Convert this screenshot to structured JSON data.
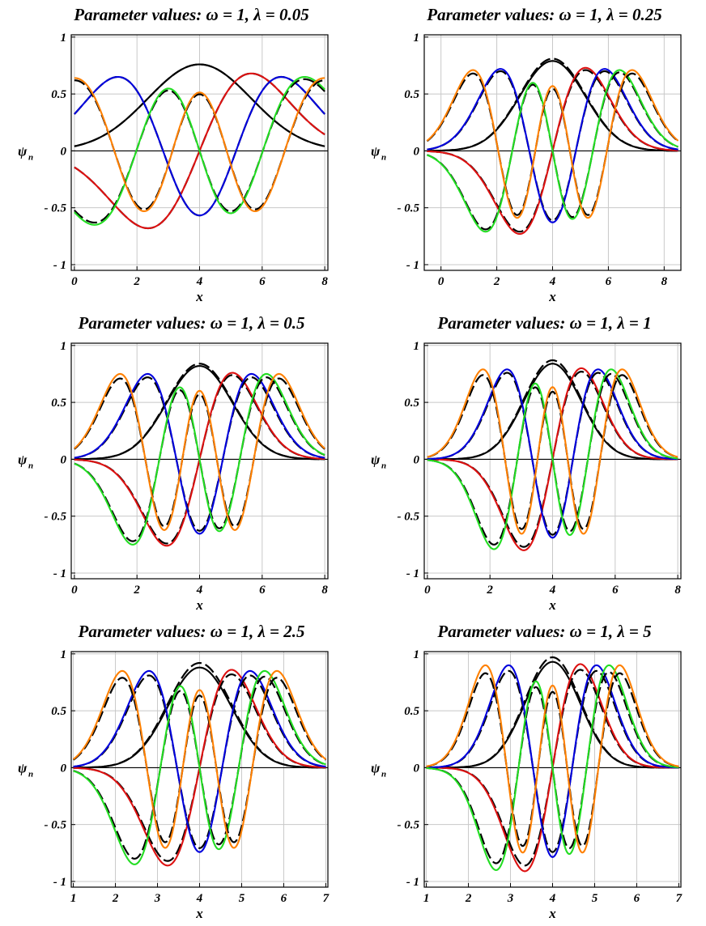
{
  "chart_data": [
    {
      "type": "line",
      "title": "Parameter values:   ω = 1,  λ = 0.05",
      "xlabel": "x",
      "ylabel": "ψ",
      "ylabel_sub": "n",
      "xlim": [
        -0.1,
        8.1
      ],
      "ylim": [
        -1.05,
        1.02
      ],
      "xticks": [
        0,
        2,
        4,
        6,
        8
      ],
      "xtick_labels": [
        "0",
        "2",
        "4",
        "6",
        "8"
      ],
      "yticks": [
        1,
        0.5,
        0,
        -0.5,
        -1
      ],
      "ytick_labels": [
        "1",
        "0.5",
        "0",
        "- 0.5",
        "- 1"
      ],
      "grid": true,
      "center": 4.0,
      "width": 1.65,
      "support": [
        0,
        8
      ],
      "dashed_overlay": true,
      "series": [
        {
          "color": "#000000",
          "order": 0,
          "amplitude": 0.76,
          "dashed_amplitude": 0.76
        },
        {
          "color": "#dd1111",
          "order": 1,
          "amplitude": 0.68,
          "dashed_amplitude": 0.68
        },
        {
          "color": "#0000dd",
          "order": 2,
          "amplitude": 0.65,
          "dashed_amplitude": 0.65
        },
        {
          "color": "#22dd22",
          "order": 3,
          "amplitude": 0.65,
          "dashed_amplitude": 0.63
        },
        {
          "color": "#ff8000",
          "order": 4,
          "amplitude": 0.64,
          "dashed_amplitude": 0.62
        }
      ]
    },
    {
      "type": "line",
      "title": "Parameter values:   ω = 1,  λ = 0.25",
      "xlabel": "x",
      "ylabel": "ψ",
      "ylabel_sub": "n",
      "xlim": [
        -0.6,
        8.6
      ],
      "ylim": [
        -1.05,
        1.02
      ],
      "xticks": [
        0,
        2,
        4,
        6,
        8
      ],
      "xtick_labels": [
        "0",
        "2",
        "4",
        "6",
        "8"
      ],
      "yticks": [
        1,
        0.5,
        0,
        -0.5,
        -1
      ],
      "ytick_labels": [
        "1",
        "0.5",
        "0",
        "- 0.5",
        "- 1"
      ],
      "grid": true,
      "center": 4.0,
      "width": 1.18,
      "support": [
        -0.5,
        8.5
      ],
      "dashed_overlay": true,
      "series": [
        {
          "color": "#000000",
          "order": 0,
          "amplitude": 0.79,
          "dashed_amplitude": 0.81
        },
        {
          "color": "#dd1111",
          "order": 1,
          "amplitude": 0.73,
          "dashed_amplitude": 0.71
        },
        {
          "color": "#0000dd",
          "order": 2,
          "amplitude": 0.72,
          "dashed_amplitude": 0.7
        },
        {
          "color": "#22dd22",
          "order": 3,
          "amplitude": 0.71,
          "dashed_amplitude": 0.69
        },
        {
          "color": "#ff8000",
          "order": 4,
          "amplitude": 0.71,
          "dashed_amplitude": 0.68
        }
      ]
    },
    {
      "type": "line",
      "title": "Parameter values:   ω = 1,  λ = 0.5",
      "xlabel": "x",
      "ylabel": "ψ",
      "ylabel_sub": "n",
      "xlim": [
        -0.1,
        8.1
      ],
      "ylim": [
        -1.05,
        1.02
      ],
      "xticks": [
        0,
        2,
        4,
        6,
        8
      ],
      "xtick_labels": [
        "0",
        "2",
        "4",
        "6",
        "8"
      ],
      "yticks": [
        1,
        0.5,
        0,
        -0.5,
        -1
      ],
      "ytick_labels": [
        "1",
        "0.5",
        "0",
        "- 0.5",
        "- 1"
      ],
      "grid": true,
      "center": 4.0,
      "width": 1.05,
      "support": [
        0,
        8
      ],
      "dashed_overlay": true,
      "series": [
        {
          "color": "#000000",
          "order": 0,
          "amplitude": 0.82,
          "dashed_amplitude": 0.84
        },
        {
          "color": "#dd1111",
          "order": 1,
          "amplitude": 0.76,
          "dashed_amplitude": 0.74
        },
        {
          "color": "#0000dd",
          "order": 2,
          "amplitude": 0.75,
          "dashed_amplitude": 0.72
        },
        {
          "color": "#22dd22",
          "order": 3,
          "amplitude": 0.75,
          "dashed_amplitude": 0.72
        },
        {
          "color": "#ff8000",
          "order": 4,
          "amplitude": 0.75,
          "dashed_amplitude": 0.71
        }
      ]
    },
    {
      "type": "line",
      "title": "Parameter values:   ω = 1,  λ = 1",
      "xlabel": "x",
      "ylabel": "ψ",
      "ylabel_sub": "n",
      "xlim": [
        -0.1,
        8.1
      ],
      "ylim": [
        -1.05,
        1.02
      ],
      "xticks": [
        0,
        2,
        4,
        6,
        8
      ],
      "xtick_labels": [
        "0",
        "2",
        "4",
        "6",
        "8"
      ],
      "yticks": [
        1,
        0.5,
        0,
        -0.5,
        -1
      ],
      "ytick_labels": [
        "1",
        "0.5",
        "0",
        "- 0.5",
        "- 1"
      ],
      "grid": true,
      "center": 4.0,
      "width": 0.92,
      "support": [
        0,
        8
      ],
      "dashed_overlay": true,
      "series": [
        {
          "color": "#000000",
          "order": 0,
          "amplitude": 0.84,
          "dashed_amplitude": 0.87
        },
        {
          "color": "#dd1111",
          "order": 1,
          "amplitude": 0.8,
          "dashed_amplitude": 0.77
        },
        {
          "color": "#0000dd",
          "order": 2,
          "amplitude": 0.79,
          "dashed_amplitude": 0.76
        },
        {
          "color": "#22dd22",
          "order": 3,
          "amplitude": 0.79,
          "dashed_amplitude": 0.75
        },
        {
          "color": "#ff8000",
          "order": 4,
          "amplitude": 0.79,
          "dashed_amplitude": 0.74
        }
      ]
    },
    {
      "type": "line",
      "title": "Parameter values:   ω = 1,  λ = 2.5",
      "xlabel": "x",
      "ylabel": "ψ",
      "ylabel_sub": "n",
      "xlim": [
        0.95,
        7.05
      ],
      "ylim": [
        -1.05,
        1.02
      ],
      "xticks": [
        1,
        2,
        3,
        4,
        5,
        6,
        7
      ],
      "xtick_labels": [
        "1",
        "2",
        "3",
        "4",
        "5",
        "6",
        "7"
      ],
      "yticks": [
        1,
        0.5,
        0,
        -0.5,
        -1
      ],
      "ytick_labels": [
        "1",
        "0.5",
        "0",
        "- 0.5",
        "- 1"
      ],
      "grid": true,
      "center": 4.0,
      "width": 0.76,
      "support": [
        1,
        7
      ],
      "dashed_overlay": true,
      "series": [
        {
          "color": "#000000",
          "order": 0,
          "amplitude": 0.88,
          "dashed_amplitude": 0.92
        },
        {
          "color": "#dd1111",
          "order": 1,
          "amplitude": 0.86,
          "dashed_amplitude": 0.82
        },
        {
          "color": "#0000dd",
          "order": 2,
          "amplitude": 0.85,
          "dashed_amplitude": 0.81
        },
        {
          "color": "#22dd22",
          "order": 3,
          "amplitude": 0.85,
          "dashed_amplitude": 0.8
        },
        {
          "color": "#ff8000",
          "order": 4,
          "amplitude": 0.85,
          "dashed_amplitude": 0.79
        }
      ]
    },
    {
      "type": "line",
      "title": "Parameter values:   ω = 1,  λ = 5",
      "xlabel": "x",
      "ylabel": "ψ",
      "ylabel_sub": "n",
      "xlim": [
        0.95,
        7.05
      ],
      "ylim": [
        -1.05,
        1.02
      ],
      "xticks": [
        1,
        2,
        3,
        4,
        5,
        6,
        7
      ],
      "xtick_labels": [
        "1",
        "2",
        "3",
        "4",
        "5",
        "6",
        "7"
      ],
      "yticks": [
        1,
        0.5,
        0,
        -0.5,
        -1
      ],
      "ytick_labels": [
        "1",
        "0.5",
        "0",
        "- 0.5",
        "- 1"
      ],
      "grid": true,
      "center": 4.0,
      "width": 0.66,
      "support": [
        1,
        7
      ],
      "dashed_overlay": true,
      "series": [
        {
          "color": "#000000",
          "order": 0,
          "amplitude": 0.93,
          "dashed_amplitude": 0.97
        },
        {
          "color": "#dd1111",
          "order": 1,
          "amplitude": 0.91,
          "dashed_amplitude": 0.86
        },
        {
          "color": "#0000dd",
          "order": 2,
          "amplitude": 0.9,
          "dashed_amplitude": 0.85
        },
        {
          "color": "#22dd22",
          "order": 3,
          "amplitude": 0.9,
          "dashed_amplitude": 0.84
        },
        {
          "color": "#ff8000",
          "order": 4,
          "amplitude": 0.9,
          "dashed_amplitude": 0.83
        }
      ]
    }
  ]
}
